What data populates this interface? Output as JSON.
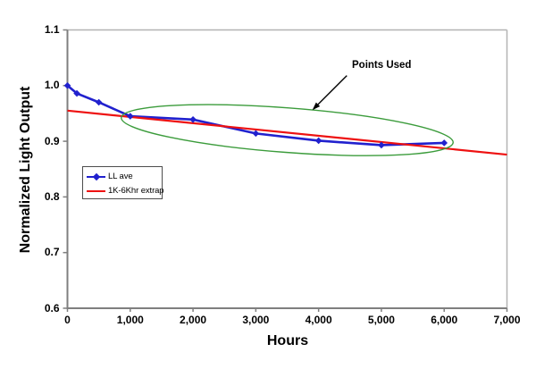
{
  "chart_data": {
    "type": "line",
    "title": "",
    "xlabel": "Hours",
    "ylabel": "Normalized Light Output",
    "xlim": [
      0,
      7000
    ],
    "ylim": [
      0.6,
      1.1
    ],
    "grid": false,
    "legend_position": "inside-left-middle",
    "x_tick_labels": [
      "0",
      "1,000",
      "2,000",
      "3,000",
      "4,000",
      "5,000",
      "6,000",
      "7,000"
    ],
    "x_tick_values": [
      0,
      1000,
      2000,
      3000,
      4000,
      5000,
      6000,
      7000
    ],
    "y_tick_labels": [
      "1.1",
      "1.0",
      "0.9",
      "0.8",
      "0.7",
      "0.6"
    ],
    "y_tick_values": [
      1.1,
      1.0,
      0.9,
      0.8,
      0.7,
      0.6
    ],
    "series": [
      {
        "name": "LL ave",
        "color": "#2121CE",
        "marker": "diamond",
        "x": [
          0,
          150,
          500,
          1000,
          2000,
          3000,
          4000,
          5000,
          6000
        ],
        "y": [
          1.0,
          0.986,
          0.97,
          0.945,
          0.939,
          0.914,
          0.901,
          0.893,
          0.897
        ]
      },
      {
        "name": "1K-6Khr extrap",
        "color": "#EE1111",
        "marker": "none",
        "x": [
          0,
          7000
        ],
        "y": [
          0.955,
          0.876
        ]
      }
    ],
    "annotations": {
      "points_used": {
        "text": "Points Used",
        "arrow": {
          "from_x": 4450,
          "from_y": 1.018,
          "to_x": 3900,
          "to_y": 0.956
        },
        "ellipse": {
          "cx": 3500,
          "cy": 0.92,
          "rx": 2650,
          "ry": 0.04,
          "rotate_deg": 4.3
        }
      }
    },
    "colors": {
      "axis": "#7F7F7F",
      "plot_border": "#B3B3B3",
      "annotation_green": "#3C9C3C",
      "arrow": "#000000",
      "text": "#000000"
    }
  }
}
